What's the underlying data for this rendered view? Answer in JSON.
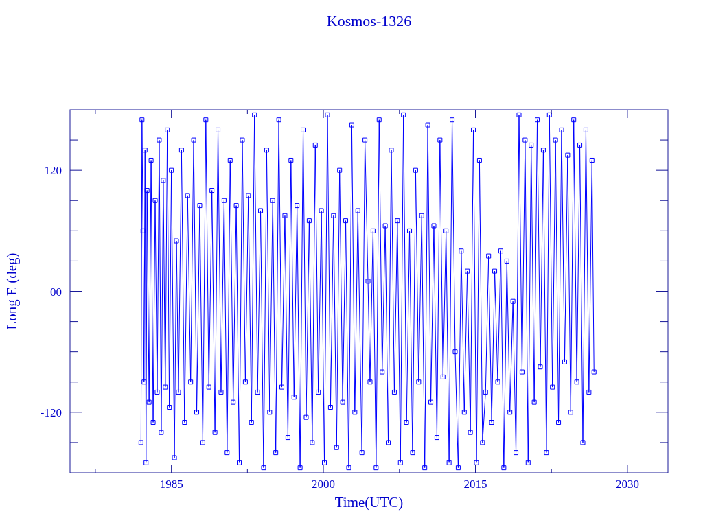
{
  "chart_data": {
    "type": "line",
    "title": "Kosmos-1326",
    "xlabel": "Time(UTC)",
    "ylabel": "Long E (deg)",
    "xlim": [
      1975,
      2034
    ],
    "xticks": [
      {
        "value": 1977.5,
        "label": null
      },
      1985,
      {
        "value": 1992.5,
        "label": null
      },
      2000,
      {
        "value": 2007.5,
        "label": null
      },
      2015,
      {
        "value": 2022.5,
        "label": null
      },
      2030
    ],
    "ylim": [
      -180,
      180
    ],
    "yticks": [
      {
        "value": -150,
        "label": null
      },
      -120,
      {
        "value": -90,
        "label": null
      },
      {
        "value": -60,
        "label": null
      },
      {
        "value": -30,
        "label": null
      },
      {
        "value": 0,
        "label": "00"
      },
      {
        "value": 30,
        "label": null
      },
      {
        "value": 60,
        "label": null
      },
      {
        "value": 90,
        "label": null
      },
      120,
      {
        "value": 150,
        "label": null
      }
    ],
    "marker": "square",
    "line_style": "solid",
    "grid": false,
    "series": [
      {
        "color": "#0000ff",
        "x": [
          1982.0,
          1982.1,
          1982.2,
          1982.3,
          1982.4,
          1982.5,
          1982.6,
          1982.8,
          1983.0,
          1983.2,
          1983.4,
          1983.6,
          1983.8,
          1984.0,
          1984.2,
          1984.4,
          1984.6,
          1984.8,
          1985.0,
          1985.3,
          1985.5,
          1985.7,
          1986.0,
          1986.3,
          1986.6,
          1986.9,
          1987.2,
          1987.5,
          1987.8,
          1988.1,
          1988.4,
          1988.7,
          1989.0,
          1989.3,
          1989.6,
          1989.9,
          1990.2,
          1990.5,
          1990.8,
          1991.1,
          1991.4,
          1991.7,
          1992.0,
          1992.3,
          1992.6,
          1992.9,
          1993.2,
          1993.5,
          1993.8,
          1994.1,
          1994.4,
          1994.7,
          1995.0,
          1995.3,
          1995.6,
          1995.9,
          1996.2,
          1996.5,
          1996.8,
          1997.1,
          1997.4,
          1997.7,
          1998.0,
          1998.3,
          1998.6,
          1998.9,
          1999.2,
          1999.5,
          1999.8,
          2000.1,
          2000.4,
          2000.7,
          2001.0,
          2001.3,
          2001.6,
          2001.9,
          2002.2,
          2002.5,
          2002.8,
          2003.1,
          2003.4,
          2003.8,
          2004.1,
          2004.4,
          2004.6,
          2004.9,
          2005.2,
          2005.5,
          2005.8,
          2006.1,
          2006.4,
          2006.7,
          2007.0,
          2007.3,
          2007.6,
          2007.9,
          2008.2,
          2008.5,
          2008.8,
          2009.1,
          2009.4,
          2009.7,
          2010.0,
          2010.3,
          2010.6,
          2010.9,
          2011.2,
          2011.5,
          2011.8,
          2012.1,
          2012.4,
          2012.7,
          2013.0,
          2013.3,
          2013.6,
          2013.9,
          2014.2,
          2014.5,
          2014.8,
          2015.1,
          2015.4,
          2015.7,
          2016.0,
          2016.3,
          2016.6,
          2016.9,
          2017.2,
          2017.5,
          2017.8,
          2018.1,
          2018.4,
          2018.7,
          2019.0,
          2019.3,
          2019.6,
          2019.9,
          2020.2,
          2020.5,
          2020.8,
          2021.1,
          2021.4,
          2021.7,
          2022.0,
          2022.3,
          2022.6,
          2022.9,
          2023.2,
          2023.5,
          2023.8,
          2024.1,
          2024.4,
          2024.7,
          2025.0,
          2025.3,
          2025.6,
          2025.9,
          2026.2,
          2026.5,
          2026.7
        ],
        "values": [
          -150,
          170,
          60,
          -90,
          140,
          -170,
          100,
          -110,
          130,
          -130,
          90,
          -100,
          150,
          -140,
          110,
          -95,
          160,
          -115,
          120,
          -165,
          50,
          -100,
          140,
          -130,
          95,
          -90,
          150,
          -120,
          85,
          -150,
          170,
          -95,
          100,
          -140,
          160,
          -100,
          90,
          -160,
          130,
          -110,
          85,
          -170,
          150,
          -90,
          95,
          -130,
          175,
          -100,
          80,
          -175,
          140,
          -120,
          90,
          -160,
          170,
          -95,
          75,
          -145,
          130,
          -105,
          85,
          -175,
          160,
          -125,
          70,
          -150,
          145,
          -100,
          80,
          -170,
          175,
          -115,
          75,
          -155,
          120,
          -110,
          70,
          -175,
          165,
          -120,
          80,
          -160,
          150,
          10,
          -90,
          60,
          -175,
          170,
          -80,
          65,
          -150,
          140,
          -100,
          70,
          -170,
          175,
          -130,
          60,
          -160,
          120,
          -90,
          75,
          -175,
          165,
          -110,
          65,
          -145,
          150,
          -85,
          60,
          -170,
          170,
          -60,
          -175,
          40,
          -120,
          20,
          -140,
          160,
          -170,
          130,
          -150,
          -100,
          35,
          -130,
          20,
          -90,
          40,
          -175,
          30,
          -120,
          -10,
          -160,
          175,
          -80,
          150,
          -170,
          145,
          -110,
          170,
          -75,
          140,
          -160,
          175,
          -95,
          150,
          -130,
          160,
          -70,
          135,
          -120,
          170,
          -90,
          145,
          -150,
          160,
          -100,
          130,
          -80
        ]
      }
    ]
  }
}
